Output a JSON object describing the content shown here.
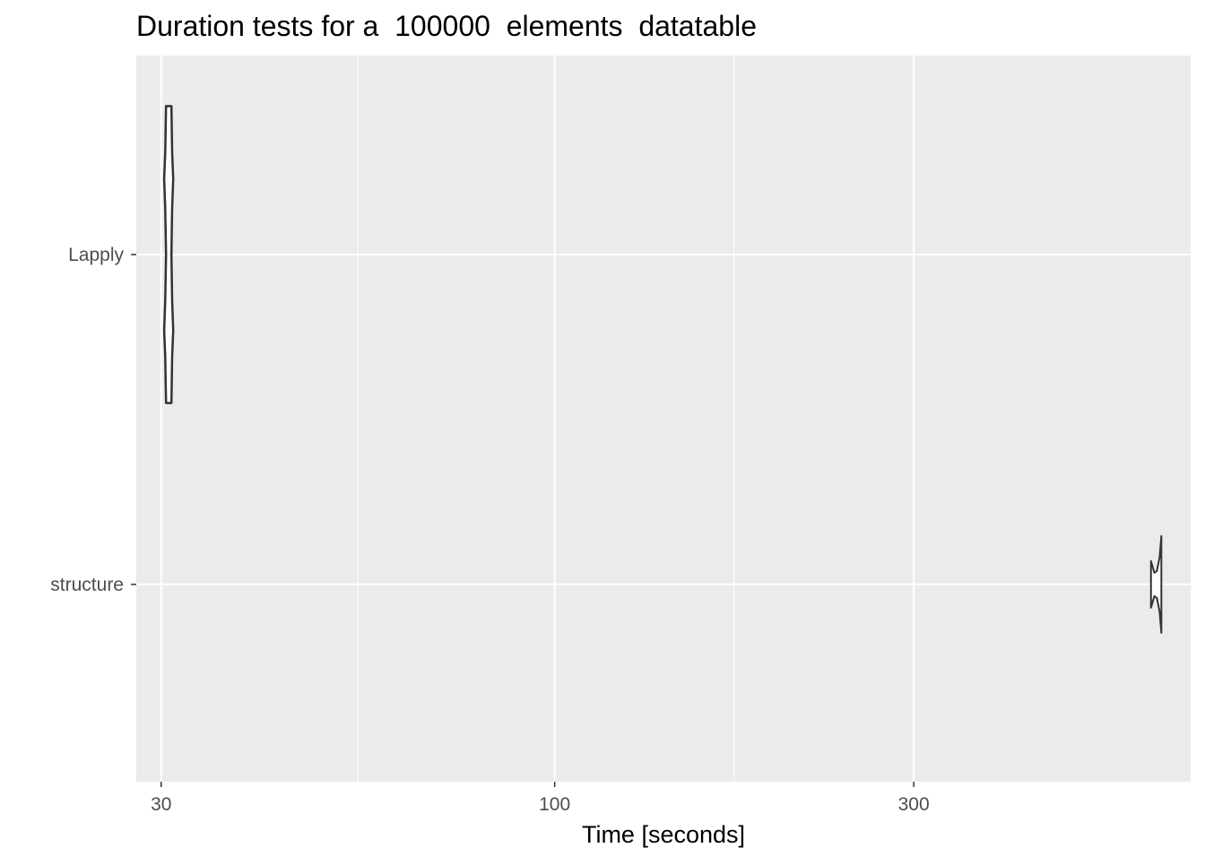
{
  "chart_data": {
    "type": "violin",
    "title": "Duration tests for a  100000  elements  datatable",
    "xlabel": "Time [seconds]",
    "ylabel": "",
    "x_scale": "log10",
    "xlim": [
      27.8,
      700
    ],
    "x_major_ticks": [
      30,
      100,
      300
    ],
    "x_tick_labels": [
      "30",
      "100",
      "300"
    ],
    "x_minor_ticks": [
      54.77,
      173.2
    ],
    "categories": [
      "Lapply",
      "structure"
    ],
    "grid": true,
    "legend": "none",
    "series": [
      {
        "category": "Lapply",
        "min": 30.7,
        "max": 30.7,
        "density_y_offsets": [
          -0.45,
          -0.31,
          -0.23,
          -0.14,
          0.0,
          0.14,
          0.23,
          0.31,
          0.45
        ],
        "half_width_x": [
          30.7,
          30.9,
          31.0,
          30.9,
          30.8,
          30.9,
          31.0,
          30.9,
          30.7
        ]
      },
      {
        "category": "structure",
        "min": 620,
        "max": 640,
        "density_y_offsets": [
          -0.145,
          -0.12,
          -0.07,
          0.0,
          0.07,
          0.12,
          0.145
        ]
      }
    ],
    "colors": {
      "panel": "#ebebeb",
      "grid_major": "#ffffff",
      "violin_stroke": "#333333",
      "violin_fill": "#ffffff"
    }
  }
}
